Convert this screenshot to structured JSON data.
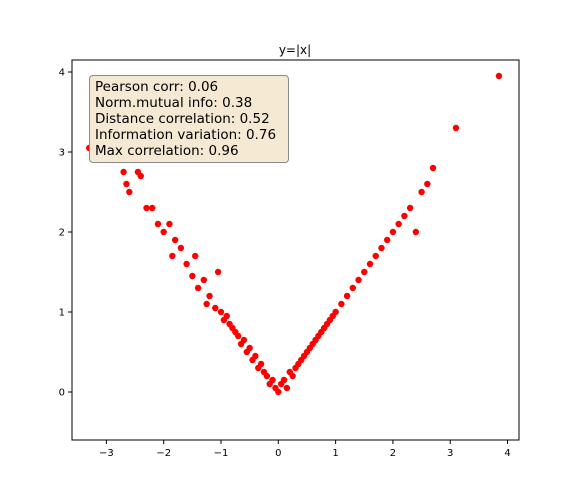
{
  "chart_data": {
    "type": "scatter",
    "title": "y=|x|",
    "xlabel": "",
    "ylabel": "",
    "xlim": [
      -3.6,
      4.2
    ],
    "ylim": [
      -0.6,
      4.15
    ],
    "xticks": [
      -3,
      -2,
      -1,
      0,
      1,
      2,
      3,
      4
    ],
    "yticks": [
      0,
      1,
      2,
      3,
      4
    ],
    "grid": false,
    "marker_color": "#ff0000",
    "stats_box": {
      "location": "top-left",
      "lines": [
        "Pearson corr: 0.06",
        "Norm.mutual info: 0.38",
        "Distance correlation: 0.52",
        "Information variation: 0.76",
        "Max correlation: 0.96"
      ]
    },
    "series": [
      {
        "x": [
          -3.3,
          -2.7,
          -2.65,
          -2.6,
          -2.45,
          -2.4,
          -2.3,
          -2.2,
          -2.1,
          -2.0,
          -1.9,
          -1.85,
          -1.8,
          -1.7,
          -1.6,
          -1.5,
          -1.45,
          -1.4,
          -1.3,
          -1.25,
          -1.2,
          -1.1,
          -1.05,
          -1.0,
          -0.95,
          -0.9,
          -0.85,
          -0.8,
          -0.75,
          -0.7,
          -0.65,
          -0.6,
          -0.55,
          -0.5,
          -0.45,
          -0.4,
          -0.35,
          -0.3,
          -0.25,
          -0.2,
          -0.15,
          -0.1,
          -0.05,
          0.0,
          0.05,
          0.1,
          0.15,
          0.2,
          0.25,
          0.3,
          0.35,
          0.4,
          0.45,
          0.5,
          0.55,
          0.6,
          0.65,
          0.7,
          0.75,
          0.8,
          0.85,
          0.9,
          0.95,
          1.0,
          1.1,
          1.2,
          1.3,
          1.4,
          1.5,
          1.6,
          1.7,
          1.8,
          1.9,
          2.0,
          2.1,
          2.2,
          2.3,
          2.4,
          2.5,
          2.6,
          2.7,
          3.1,
          3.85
        ],
        "y": [
          3.05,
          2.75,
          2.6,
          2.5,
          2.75,
          2.7,
          2.3,
          2.3,
          2.1,
          2.0,
          2.1,
          1.7,
          1.9,
          1.8,
          1.6,
          1.45,
          1.7,
          1.3,
          1.4,
          1.1,
          1.2,
          1.05,
          1.5,
          1.0,
          0.9,
          0.95,
          0.85,
          0.8,
          0.75,
          0.7,
          0.6,
          0.65,
          0.5,
          0.55,
          0.4,
          0.45,
          0.3,
          0.35,
          0.25,
          0.2,
          0.1,
          0.15,
          0.05,
          0.0,
          0.1,
          0.15,
          0.05,
          0.25,
          0.2,
          0.3,
          0.35,
          0.4,
          0.45,
          0.5,
          0.55,
          0.6,
          0.65,
          0.7,
          0.75,
          0.8,
          0.85,
          0.9,
          0.95,
          1.0,
          1.1,
          1.2,
          1.3,
          1.4,
          1.5,
          1.6,
          1.7,
          1.8,
          1.9,
          2.0,
          2.1,
          2.2,
          2.3,
          2.0,
          2.5,
          2.6,
          2.8,
          3.3,
          3.95
        ]
      }
    ]
  }
}
